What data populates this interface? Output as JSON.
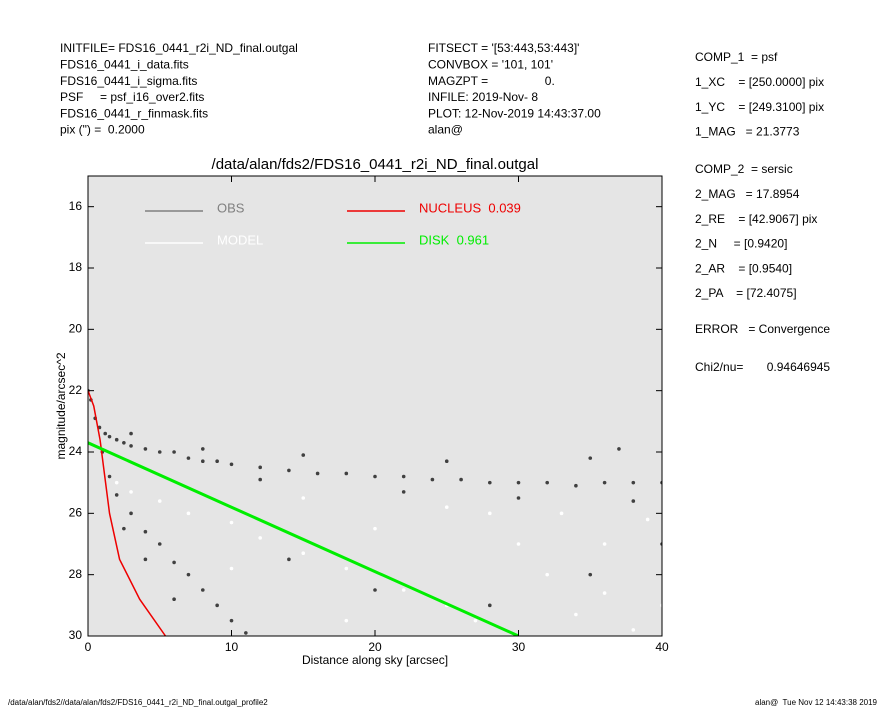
{
  "info_left": [
    "INITFILE= FDS16_0441_r2i_ND_final.outgal",
    "FDS16_0441_i_data.fits",
    "FDS16_0441_i_sigma.fits",
    "PSF     = psf_i16_over2.fits",
    "FDS16_0441_r_finmask.fits",
    "pix (\") =  0.2000"
  ],
  "info_mid": [
    "FITSECT = '[53:443,53:443]'",
    "CONVBOX = '101, 101'",
    "MAGZPT =                 0.",
    "INFILE: 2019-Nov- 8",
    "PLOT: 12-Nov-2019 14:43:37.00",
    "alan@"
  ],
  "info_right": [
    [
      "COMP_1  = psf",
      "1_XC    = [250.0000] pix",
      "1_YC    = [249.3100] pix",
      "1_MAG   = 21.3773"
    ],
    [
      "COMP_2  = sersic",
      "2_MAG   = 17.8954",
      "2_RE    = [42.9067] pix",
      "2_N     = [0.9420]",
      "2_AR    = [0.9540]",
      "2_PA    = [72.4075]"
    ],
    [
      "ERROR   = Convergence"
    ],
    [
      "Chi2/nu=       0.94646945"
    ]
  ],
  "footer_left": "/data/alan/fds2//data/alan/fds2/FDS16_0441_r2i_ND_final.outgal_profile2",
  "footer_right": "alan@  Tue Nov 12 14:43:38 2019",
  "chart_data": {
    "type": "scatter",
    "title": "/data/alan/fds2/FDS16_0441_r2i_ND_final.outgal",
    "x_label": "Distance along sky [arcsec]",
    "y_label": "magnitude/arcsec^2",
    "xlim": [
      0,
      40
    ],
    "xticks": [
      0,
      10,
      20,
      30,
      40
    ],
    "ylim": [
      30,
      15
    ],
    "yticks": [
      16,
      18,
      20,
      22,
      24,
      26,
      28,
      30
    ],
    "background": "#e5e5e5",
    "series": [
      {
        "name": "OBS",
        "type": "scatter",
        "color": "#808080",
        "point_color": "#404040",
        "x": [
          0,
          0.2,
          0.5,
          0.8,
          1.2,
          1.5,
          2,
          2.5,
          3,
          4,
          5,
          6,
          7,
          8,
          9,
          10,
          12,
          14,
          16,
          18,
          20,
          22,
          24,
          26,
          28,
          30,
          32,
          34,
          36,
          38,
          40,
          3,
          8,
          15,
          25,
          35,
          37,
          12,
          22,
          30,
          38,
          1,
          1.5,
          2,
          3,
          4,
          5,
          6,
          7,
          8,
          9,
          10,
          11,
          2.5,
          4,
          6,
          14,
          20,
          28,
          35,
          40
        ],
        "values": [
          22.0,
          22.3,
          22.9,
          23.2,
          23.4,
          23.5,
          23.6,
          23.7,
          23.8,
          23.9,
          24.0,
          24.0,
          24.2,
          24.3,
          24.3,
          24.4,
          24.5,
          24.6,
          24.7,
          24.7,
          24.8,
          24.8,
          24.9,
          24.9,
          25.0,
          25.0,
          25.0,
          25.1,
          25.0,
          25.0,
          25.0,
          23.4,
          23.9,
          24.1,
          24.3,
          24.2,
          23.9,
          24.9,
          25.3,
          25.5,
          25.6,
          24.0,
          24.8,
          25.4,
          26.0,
          26.6,
          27.0,
          27.6,
          28.0,
          28.5,
          29.0,
          29.5,
          29.9,
          26.5,
          27.5,
          28.8,
          27.5,
          28.5,
          29.0,
          28.0,
          27.0
        ]
      },
      {
        "name": "MODEL",
        "type": "scatter",
        "color": "#ffffff",
        "point_color": "#ffffff",
        "x": [
          2,
          3,
          5,
          7,
          10,
          12,
          15,
          18,
          20,
          22,
          25,
          27,
          30,
          32,
          34,
          36,
          38,
          40,
          15,
          25,
          33,
          39,
          10,
          18,
          28,
          36
        ],
        "values": [
          25.0,
          25.3,
          25.6,
          26.0,
          26.3,
          26.8,
          27.3,
          27.8,
          26.5,
          28.5,
          29.0,
          29.5,
          27.0,
          28.0,
          29.3,
          28.6,
          29.8,
          29.0,
          25.5,
          25.8,
          26.0,
          26.2,
          27.8,
          29.5,
          26.0,
          27.0
        ]
      },
      {
        "name": "NUCLEUS  0.039",
        "type": "line",
        "color": "#ee0000",
        "x": [
          0,
          0.4,
          0.84,
          1.5,
          2.2,
          3.6,
          5.4
        ],
        "values": [
          22.0,
          22.5,
          23.6,
          26.0,
          27.5,
          28.8,
          30.0
        ]
      },
      {
        "name": "DISK  0.961",
        "type": "line",
        "color": "#00ee00",
        "x": [
          0,
          10,
          20,
          30
        ],
        "values": [
          23.7,
          25.8,
          27.9,
          30.0
        ]
      }
    ]
  }
}
